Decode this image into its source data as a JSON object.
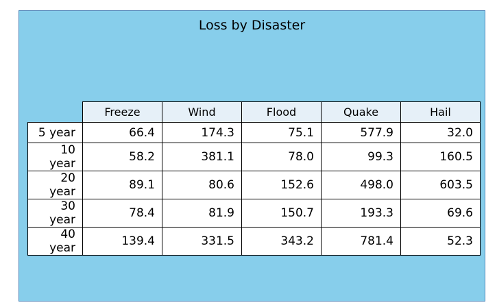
{
  "chart_data": {
    "type": "table",
    "title": "Loss by Disaster",
    "columns": [
      "Freeze",
      "Wind",
      "Flood",
      "Quake",
      "Hail"
    ],
    "rows": [
      {
        "label": "5 year",
        "values": [
          "66.4",
          "174.3",
          "75.1",
          "577.9",
          "32.0"
        ]
      },
      {
        "label": "10 year",
        "values": [
          "58.2",
          "381.1",
          "78.0",
          "99.3",
          "160.5"
        ]
      },
      {
        "label": "20 year",
        "values": [
          "89.1",
          "80.6",
          "152.6",
          "498.0",
          "603.5"
        ]
      },
      {
        "label": "30 year",
        "values": [
          "78.4",
          "81.9",
          "150.7",
          "193.3",
          "69.6"
        ]
      },
      {
        "label": "40 year",
        "values": [
          "139.4",
          "331.5",
          "343.2",
          "781.4",
          "52.3"
        ]
      }
    ]
  },
  "colors": {
    "background": "#87ceeb",
    "header_fill": "#e6f0f8",
    "cell_fill": "#ffffff",
    "border": "#000000"
  }
}
